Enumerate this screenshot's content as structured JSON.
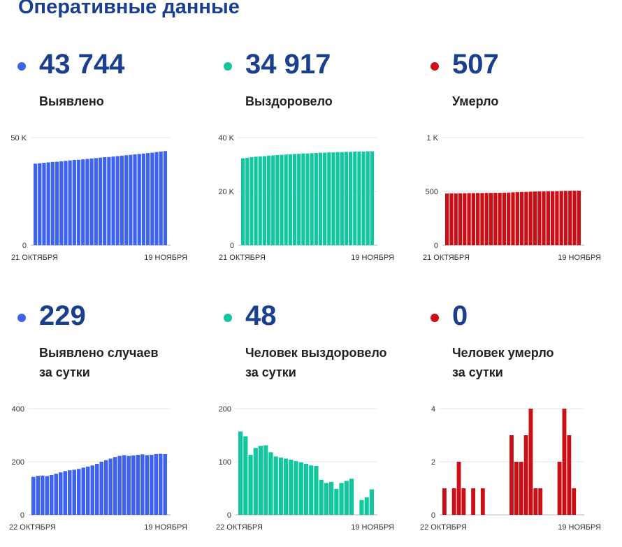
{
  "page": {
    "title": "Оперативные данные"
  },
  "stats": [
    {
      "value": "43 744",
      "label": [
        "Выявлено"
      ],
      "color": "#3d63f0"
    },
    {
      "value": "34 917",
      "label": [
        "Выздоровело"
      ],
      "color": "#10c79e"
    },
    {
      "value": "507",
      "label": [
        "Умерло"
      ],
      "color": "#cc0e16"
    },
    {
      "value": "229",
      "label": [
        "Выявлено случаев",
        "за сутки"
      ],
      "color": "#3d63f0"
    },
    {
      "value": "48",
      "label": [
        "Человек выздоровело",
        "за сутки"
      ],
      "color": "#10c79e"
    },
    {
      "value": "0",
      "label": [
        "Человек умерло",
        "за сутки"
      ],
      "color": "#cc0e16"
    }
  ],
  "chart_data": [
    {
      "type": "bar",
      "title": "Выявлено",
      "color": "#3d63f0",
      "x_start_label": "21 ОКТЯБРЯ",
      "x_end_label": "19 НОЯБРЯ",
      "ylim": [
        0,
        50000
      ],
      "yticks": [
        0,
        50000
      ],
      "ytick_labels": [
        "0",
        "50 K"
      ],
      "values": [
        37900,
        38100,
        38300,
        38500,
        38700,
        38800,
        39000,
        39200,
        39400,
        39600,
        39700,
        39900,
        40100,
        40300,
        40500,
        40700,
        40900,
        41000,
        41200,
        41400,
        41600,
        41800,
        42000,
        42200,
        42400,
        42600,
        42800,
        43000,
        43300,
        43500,
        43744
      ]
    },
    {
      "type": "bar",
      "title": "Выздоровело",
      "color": "#10c79e",
      "x_start_label": "21 ОКТЯБРЯ",
      "x_end_label": "19 НОЯБРЯ",
      "ylim": [
        0,
        40000
      ],
      "yticks": [
        0,
        20000,
        40000
      ],
      "ytick_labels": [
        "0",
        "20 K",
        "40 K"
      ],
      "values": [
        32300,
        32500,
        32700,
        32900,
        33000,
        33100,
        33300,
        33400,
        33500,
        33600,
        33700,
        33800,
        33900,
        34000,
        34100,
        34100,
        34200,
        34300,
        34400,
        34400,
        34500,
        34500,
        34600,
        34600,
        34700,
        34700,
        34800,
        34800,
        34800,
        34900,
        34917
      ]
    },
    {
      "type": "bar",
      "title": "Умерло",
      "color": "#cc0e16",
      "x_start_label": "21 ОКТЯБРЯ",
      "x_end_label": "19 НОЯБРЯ",
      "ylim": [
        0,
        1000
      ],
      "yticks": [
        0,
        500,
        1000
      ],
      "ytick_labels": [
        "0",
        "500",
        "1 K"
      ],
      "values": [
        481,
        482,
        482,
        483,
        483,
        484,
        484,
        485,
        485,
        486,
        486,
        487,
        487,
        488,
        489,
        491,
        493,
        494,
        495,
        497,
        499,
        500,
        501,
        502,
        502,
        503,
        504,
        505,
        506,
        507,
        507
      ]
    },
    {
      "type": "bar",
      "title": "Выявлено случаев за сутки",
      "color": "#3d63f0",
      "x_start_label": "22 ОКТЯБРЯ",
      "x_end_label": "19 НОЯБРЯ",
      "ylim": [
        0,
        400
      ],
      "yticks": [
        0,
        200,
        400
      ],
      "ytick_labels": [
        "0",
        "200",
        "400"
      ],
      "values": [
        143,
        147,
        148,
        146,
        150,
        155,
        160,
        165,
        168,
        170,
        173,
        178,
        182,
        186,
        192,
        200,
        206,
        212,
        218,
        222,
        225,
        222,
        224,
        226,
        228,
        225,
        226,
        229,
        230,
        229
      ]
    },
    {
      "type": "bar",
      "title": "Человек выздоровело за сутки",
      "color": "#10c79e",
      "x_start_label": "22 ОКТЯБРЯ",
      "x_end_label": "19 НОЯБРЯ",
      "ylim": [
        0,
        200
      ],
      "yticks": [
        0,
        100,
        200
      ],
      "ytick_labels": [
        "0",
        "100",
        "200"
      ],
      "values": [
        157,
        148,
        113,
        126,
        130,
        131,
        118,
        110,
        108,
        106,
        104,
        101,
        99,
        96,
        93,
        92,
        66,
        60,
        62,
        49,
        60,
        64,
        68,
        0,
        28,
        33,
        48
      ]
    },
    {
      "type": "bar",
      "title": "Человек умерло за сутки",
      "color": "#cc0e16",
      "x_start_label": "22 ОКТЯБРЯ",
      "x_end_label": "19 НОЯБРЯ",
      "ylim": [
        0,
        4
      ],
      "yticks": [
        0,
        2,
        4
      ],
      "ytick_labels": [
        "0",
        "2",
        "4"
      ],
      "values": [
        1,
        0,
        1,
        2,
        1,
        0,
        1,
        0,
        1,
        0,
        0,
        0,
        0,
        0,
        3,
        2,
        2,
        3,
        4,
        1,
        1,
        0,
        0,
        0,
        2,
        4,
        3,
        1,
        0
      ]
    }
  ]
}
